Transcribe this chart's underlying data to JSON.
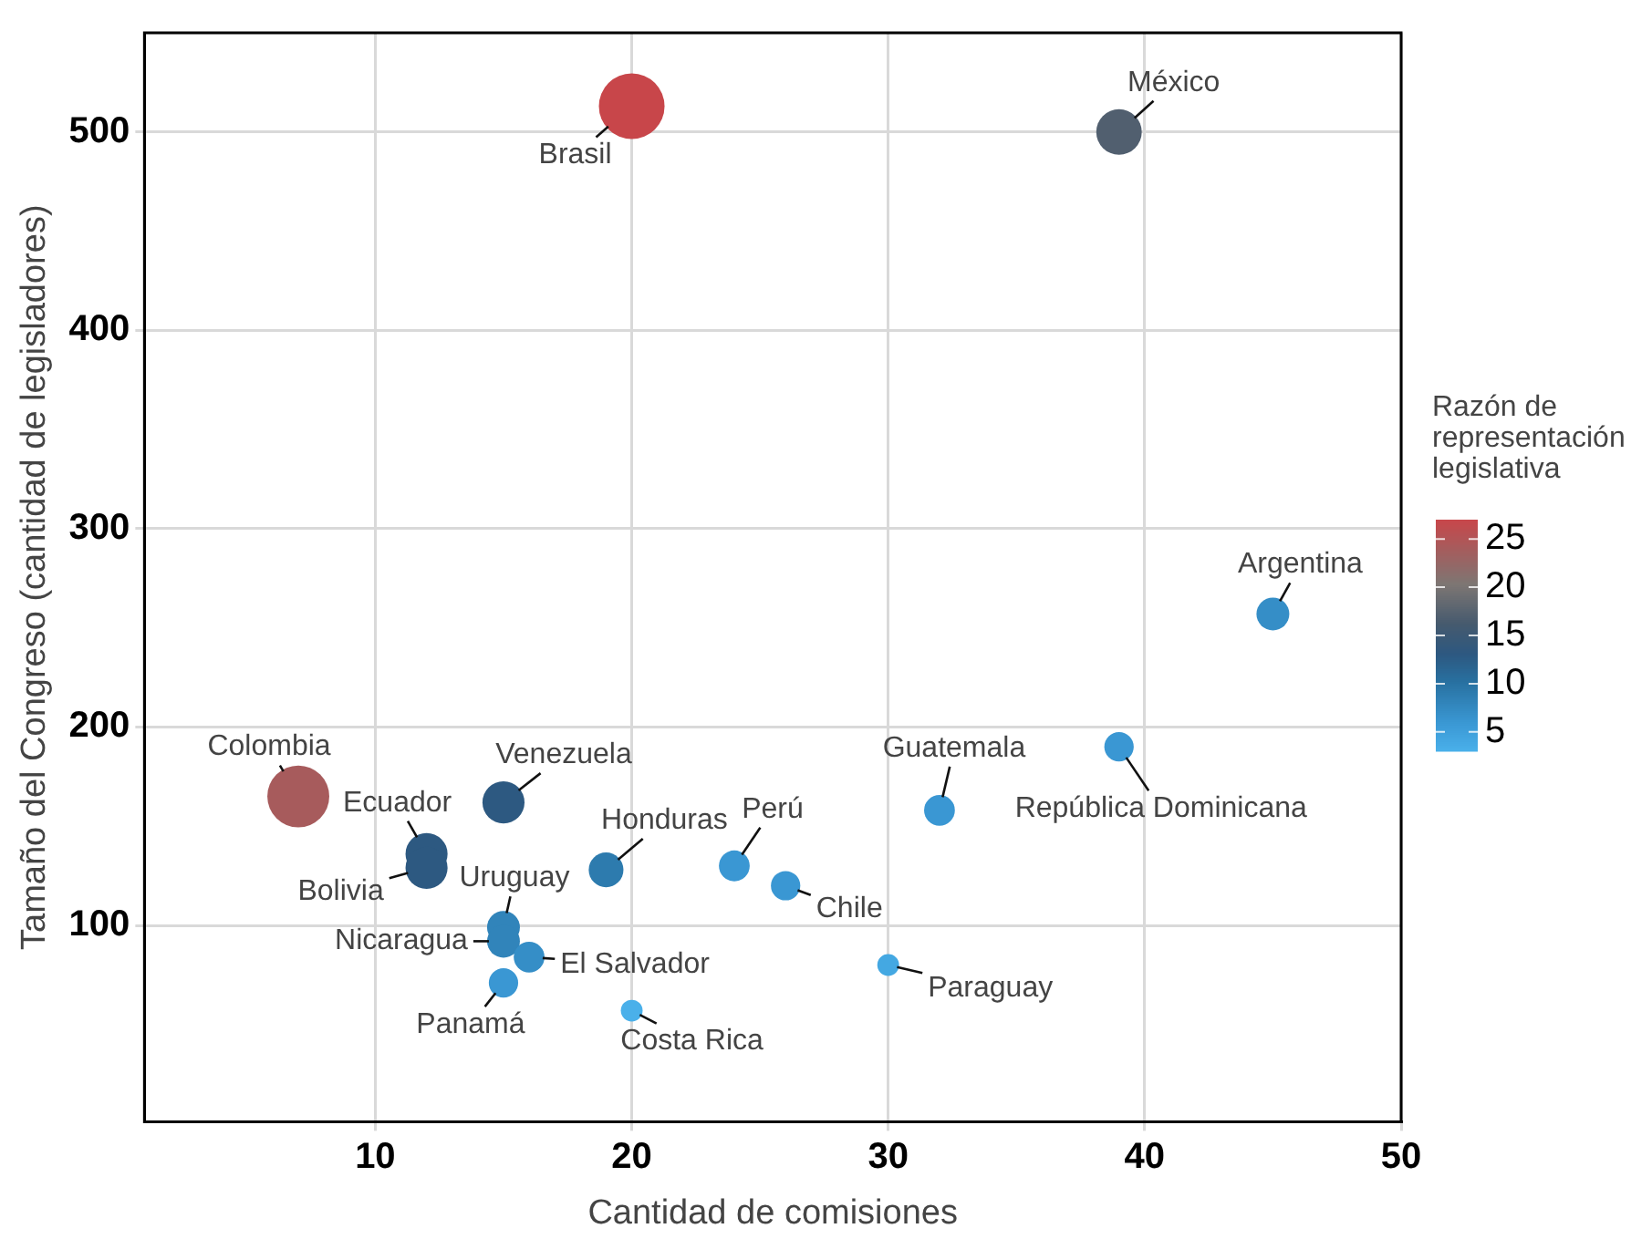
{
  "chart_data": {
    "type": "bubble",
    "sizes": [
      1,
      0.48,
      0.25,
      0.2,
      0.22,
      0.89,
      0.41,
      0.41,
      0.41,
      0.28,
      0.22,
      0.2,
      0.25,
      0.25,
      0.22,
      0.2,
      0.11,
      0.11
    ],
    "xlabel": "Cantidad de comisiones",
    "ylabel": "Tamaño del Congreso (cantidad de legisladores)",
    "legend_title": "Razón de representación legislativa",
    "x": [
      20,
      39,
      45,
      39,
      32,
      7,
      15,
      12,
      12,
      19,
      24,
      26,
      15,
      15,
      16,
      15,
      20,
      30
    ],
    "values": [
      513,
      500,
      257,
      190,
      158,
      165,
      162,
      136,
      129,
      128,
      130,
      120,
      99,
      92,
      84,
      71,
      57,
      80
    ],
    "cvalues": [
      27,
      17,
      7,
      6,
      6,
      24,
      13,
      13,
      13,
      9,
      6,
      6,
      8,
      8,
      7,
      6,
      3,
      4
    ],
    "clim": [
      3,
      27
    ],
    "cticks": [
      5,
      10,
      15,
      20,
      25
    ],
    "xlim": [
      1,
      50
    ],
    "xticks": [
      10,
      20,
      30,
      40,
      50
    ],
    "ylim": [
      1,
      550
    ],
    "yticks": [
      100,
      200,
      300,
      400,
      500
    ],
    "grid": true,
    "marker": "circle",
    "annotations": [
      {
        "text": "Brasil",
        "x": 20,
        "y": 513
      },
      {
        "text": "México",
        "x": 39,
        "y": 500
      },
      {
        "text": "Argentina",
        "x": 45,
        "y": 257
      },
      {
        "text": "República Dominicana",
        "x": 39,
        "y": 190
      },
      {
        "text": "Guatemala",
        "x": 32,
        "y": 158
      },
      {
        "text": "Colombia",
        "x": 7,
        "y": 165
      },
      {
        "text": "Venezuela",
        "x": 15,
        "y": 162
      },
      {
        "text": "Ecuador",
        "x": 12,
        "y": 136
      },
      {
        "text": "Bolivia",
        "x": 12,
        "y": 129
      },
      {
        "text": "Honduras",
        "x": 19,
        "y": 128
      },
      {
        "text": "Perú",
        "x": 24,
        "y": 130
      },
      {
        "text": "Chile",
        "x": 26,
        "y": 120
      },
      {
        "text": "Uruguay",
        "x": 15,
        "y": 99
      },
      {
        "text": "Nicaragua",
        "x": 15,
        "y": 92
      },
      {
        "text": "El Salvador",
        "x": 16,
        "y": 84
      },
      {
        "text": "Panamá",
        "x": 15,
        "y": 71
      },
      {
        "text": "Costa Rica",
        "x": 20,
        "y": 57
      },
      {
        "text": "Paraguay",
        "x": 30,
        "y": 80
      }
    ]
  }
}
